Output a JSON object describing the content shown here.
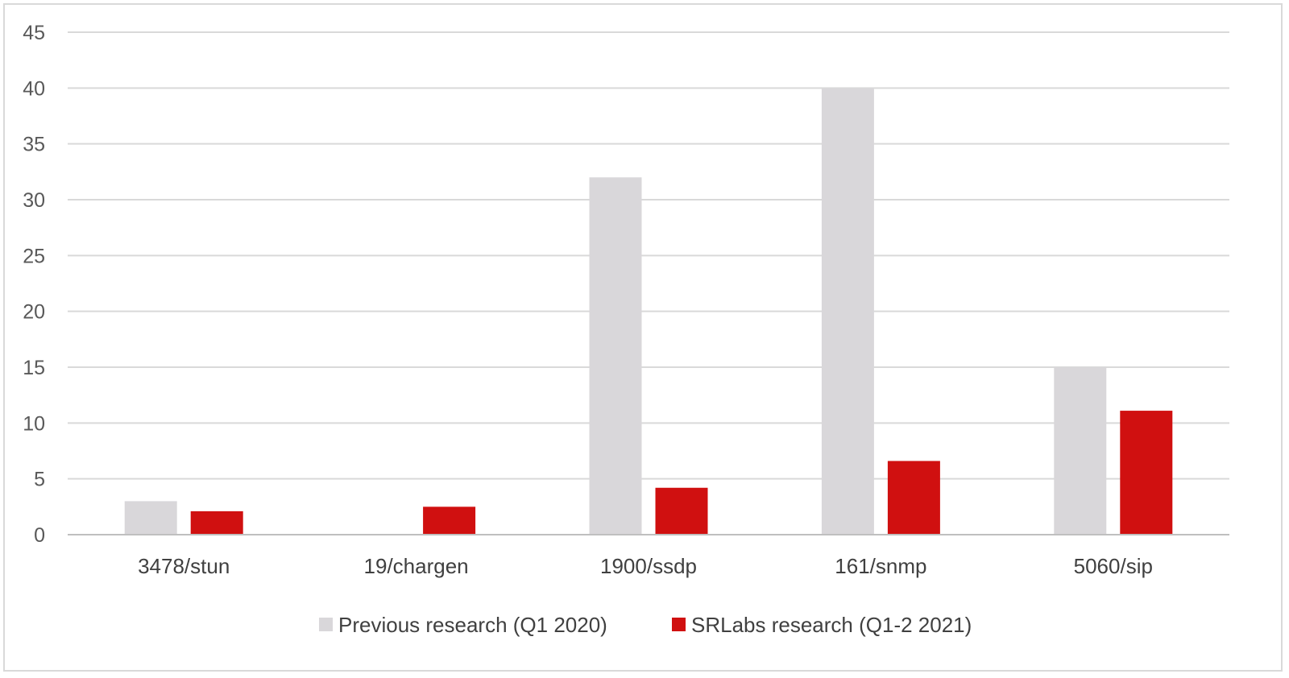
{
  "chart_data": {
    "type": "bar",
    "categories": [
      "3478/stun",
      "19/chargen",
      "1900/ssdp",
      "161/snmp",
      "5060/sip"
    ],
    "series": [
      {
        "name": "Previous research (Q1 2020)",
        "color": "#d9d7da",
        "values": [
          3,
          0,
          32,
          40,
          15
        ]
      },
      {
        "name": "SRLabs research (Q1-2 2021)",
        "color": "#d01010",
        "values": [
          2.1,
          2.5,
          4.2,
          6.6,
          11.1
        ]
      }
    ],
    "yticks": [
      "0",
      "5",
      "10",
      "15",
      "20",
      "25",
      "30",
      "35",
      "40",
      "45"
    ],
    "ylim": [
      0,
      45
    ],
    "grid": true,
    "legend_position": "bottom"
  }
}
